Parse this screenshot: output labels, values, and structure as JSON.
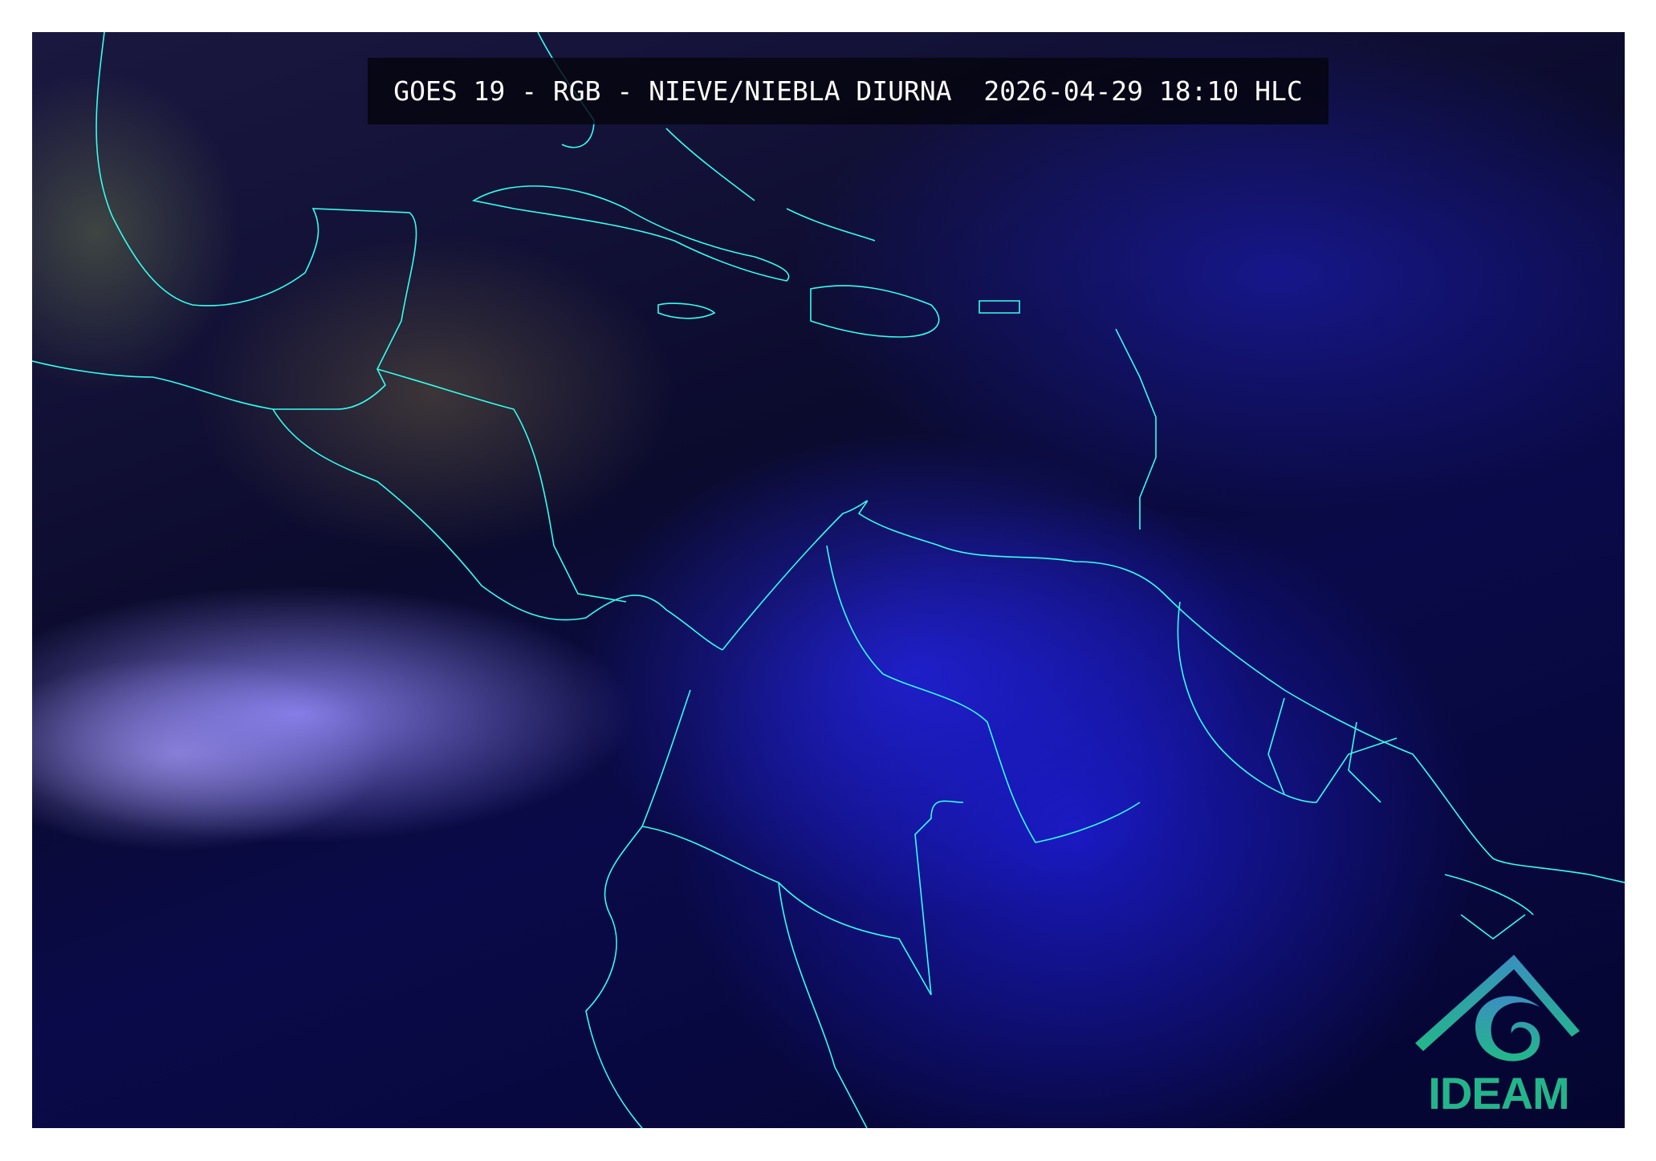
{
  "title": {
    "text": "GOES 19 - RGB - NIEVE/NIEBLA DIURNA  2026-04-29 18:10 HLC"
  },
  "map": {
    "product": "RGB Nieve/Niebla Diurna",
    "border_color": "#33ffee",
    "region": "Central America, Caribbean and northern South America"
  },
  "logo": {
    "text": "IDEAM",
    "color": "#23b58a"
  }
}
